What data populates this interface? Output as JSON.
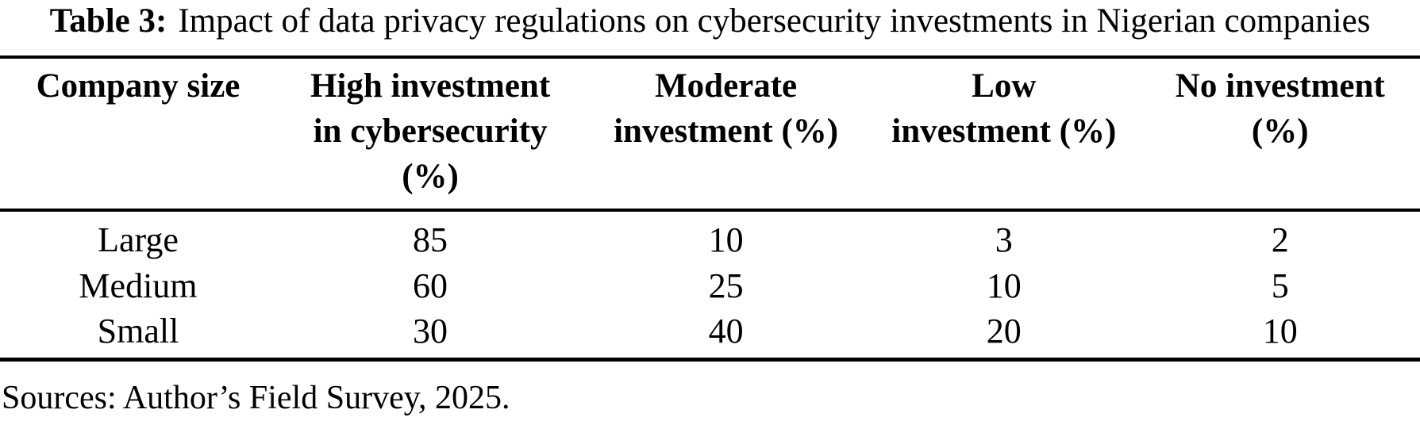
{
  "colors": {
    "text": "#000000",
    "background": "#ffffff",
    "rule": "#000000"
  },
  "table": {
    "caption": {
      "label": "Table 3:",
      "text": "Impact of data privacy regulations on cybersecurity investments in Nigerian companies"
    },
    "columns": [
      {
        "lines": [
          "Company size"
        ]
      },
      {
        "lines": [
          "High investment",
          "in cybersecurity",
          "(%)"
        ]
      },
      {
        "lines": [
          "Moderate",
          "investment (%)"
        ]
      },
      {
        "lines": [
          "Low",
          "investment (%)"
        ]
      },
      {
        "lines": [
          "No investment",
          "(%)"
        ]
      }
    ],
    "rows": [
      {
        "label": "Large",
        "values": [
          "85",
          "10",
          "3",
          "2"
        ]
      },
      {
        "label": "Medium",
        "values": [
          "60",
          "25",
          "10",
          "5"
        ]
      },
      {
        "label": "Small",
        "values": [
          "30",
          "40",
          "20",
          "10"
        ]
      }
    ],
    "source_note": "Sources: Author’s Field Survey, 2025."
  }
}
